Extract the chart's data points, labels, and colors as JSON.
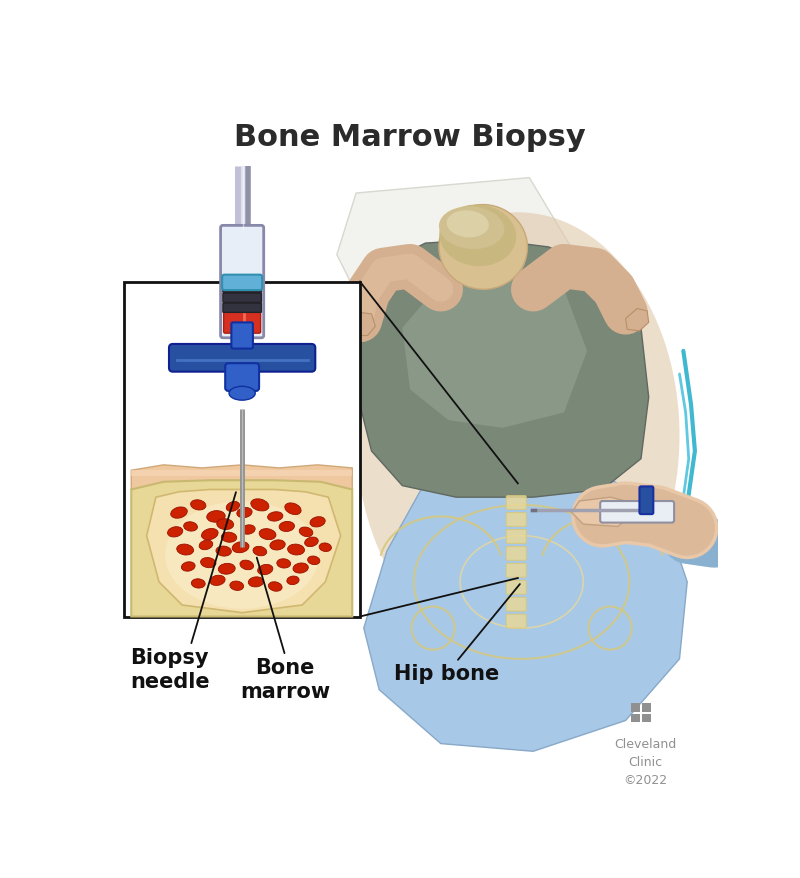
{
  "title": "Bone Marrow Biopsy",
  "title_fontsize": 22,
  "title_color": "#2b2b2b",
  "background_color": "#ffffff",
  "labels": {
    "biopsy_needle": "Biopsy\nneedle",
    "bone_marrow": "Bone\nmarrow",
    "hip_bone": "Hip bone",
    "cleveland": "Cleveland\nClinic\n©2022"
  },
  "label_fontsize": 15,
  "label_color": "#111111",
  "box_color": "#1a1a1a",
  "needle_blue": "#2850a0",
  "blue_bright": "#3060c8",
  "red_marrow": "#cc2200",
  "red_light": "#e04030",
  "orange_red": "#d83020",
  "skin_tone": "#d4b090",
  "skin_light": "#e8c8a8",
  "shirt_gray": "#7a8878",
  "shirt_mid": "#8a9888",
  "pants_blue": "#a8c8e8",
  "pants_dark": "#88a8c8",
  "bone_yellow": "#e8d898",
  "bone_mid": "#d8c878",
  "gray_logo": "#909090",
  "cyan_line": "#40b8d0"
}
